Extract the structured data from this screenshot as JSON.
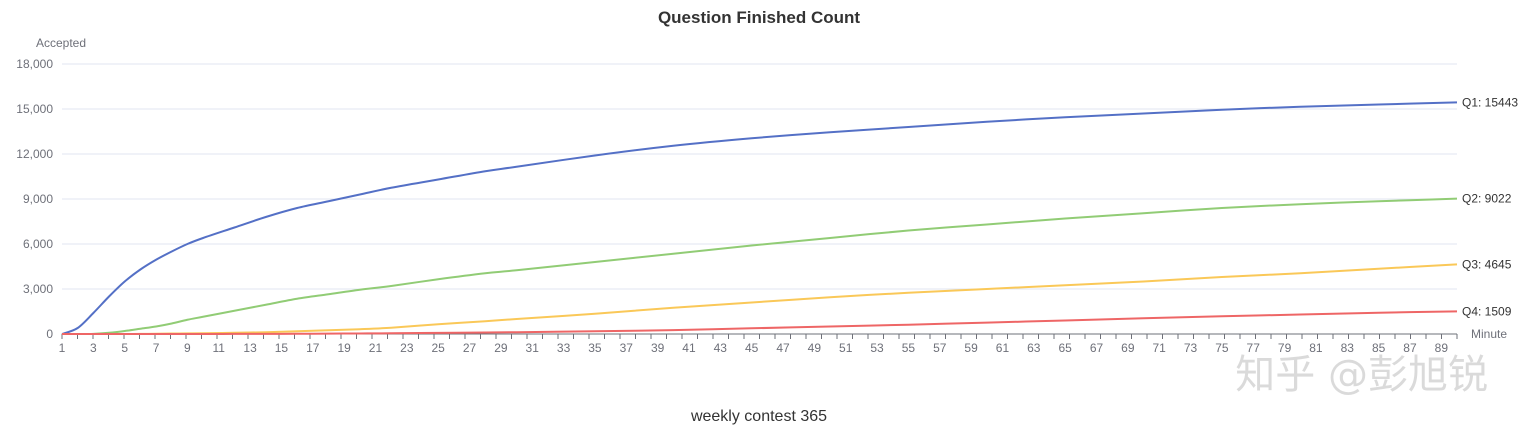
{
  "chart_data": {
    "type": "line",
    "title": "Question Finished Count",
    "ylabel": "Accepted",
    "xlabel": "Minute",
    "subtitle": "weekly contest 365",
    "watermark": "知乎 @彭旭锐",
    "xlim": [
      1,
      90
    ],
    "ylim": [
      0,
      18000
    ],
    "y_ticks": [
      0,
      3000,
      6000,
      9000,
      12000,
      15000,
      18000
    ],
    "y_tick_labels": [
      "0",
      "3,000",
      "6,000",
      "9,000",
      "12,000",
      "15,000",
      "18,000"
    ],
    "x_tick_labels": [
      "1",
      "3",
      "5",
      "7",
      "9",
      "11",
      "13",
      "15",
      "17",
      "19",
      "21",
      "23",
      "25",
      "27",
      "29",
      "31",
      "33",
      "35",
      "37",
      "39",
      "41",
      "43",
      "45",
      "47",
      "49",
      "51",
      "53",
      "55",
      "57",
      "59",
      "61",
      "63",
      "65",
      "67",
      "69",
      "71",
      "73",
      "75",
      "77",
      "79",
      "81",
      "83",
      "85",
      "87",
      "89"
    ],
    "grid": true,
    "x": [
      1,
      2,
      3,
      4,
      5,
      6,
      7,
      8,
      9,
      10,
      12,
      14,
      16,
      18,
      20,
      22,
      25,
      28,
      30,
      35,
      40,
      45,
      50,
      55,
      60,
      65,
      70,
      75,
      80,
      85,
      90
    ],
    "series": [
      {
        "name": "Q1",
        "color": "#5470c6",
        "end_label": "Q1: 15443",
        "values": [
          0,
          400,
          1400,
          2500,
          3500,
          4300,
          4950,
          5500,
          6000,
          6400,
          7100,
          7800,
          8400,
          8850,
          9300,
          9750,
          10300,
          10850,
          11150,
          11900,
          12550,
          13050,
          13450,
          13800,
          14150,
          14450,
          14700,
          14950,
          15150,
          15300,
          15443
        ]
      },
      {
        "name": "Q2",
        "color": "#91cc75",
        "end_label": "Q2: 9022",
        "values": [
          0,
          0,
          10,
          80,
          200,
          350,
          500,
          700,
          950,
          1150,
          1550,
          1950,
          2350,
          2650,
          2950,
          3200,
          3650,
          4050,
          4250,
          4800,
          5350,
          5900,
          6400,
          6900,
          7300,
          7700,
          8050,
          8400,
          8650,
          8850,
          9022
        ]
      },
      {
        "name": "Q3",
        "color": "#fac858",
        "end_label": "Q3: 4645",
        "values": [
          0,
          0,
          0,
          0,
          0,
          5,
          15,
          30,
          40,
          50,
          80,
          120,
          180,
          250,
          320,
          420,
          650,
          850,
          1000,
          1350,
          1750,
          2100,
          2450,
          2750,
          3000,
          3250,
          3500,
          3800,
          4050,
          4350,
          4645
        ]
      },
      {
        "name": "Q4",
        "color": "#ee6666",
        "end_label": "Q4: 1509",
        "values": [
          0,
          0,
          0,
          0,
          0,
          0,
          0,
          0,
          0,
          2,
          5,
          10,
          15,
          25,
          35,
          50,
          75,
          100,
          120,
          180,
          260,
          380,
          500,
          620,
          760,
          900,
          1050,
          1180,
          1300,
          1420,
          1509
        ]
      }
    ]
  }
}
